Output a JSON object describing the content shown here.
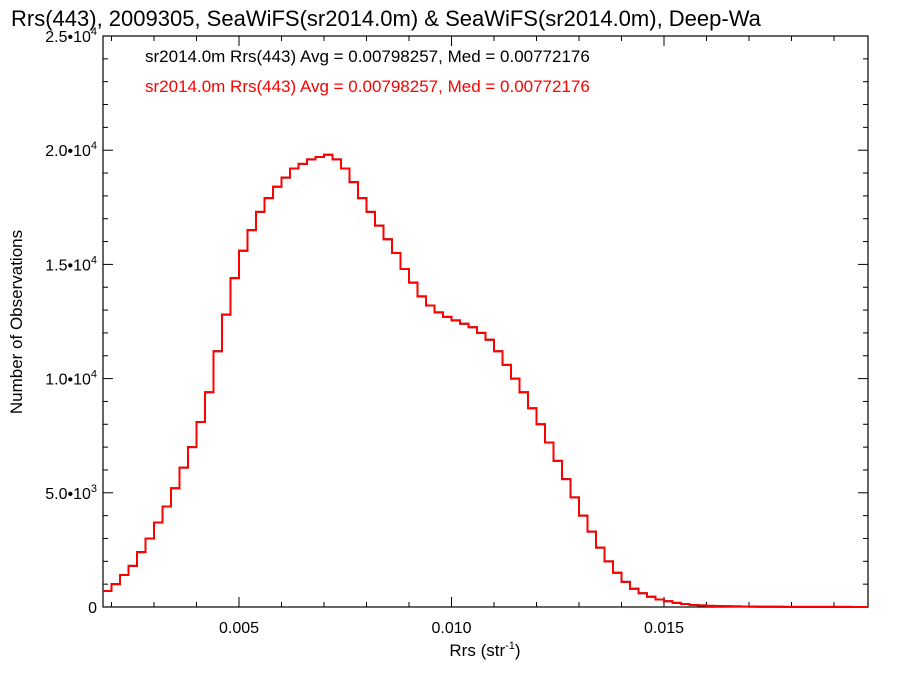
{
  "chart_data": {
    "type": "line",
    "title": "Rrs(443), 2009305, SeaWiFS(sr2014.0m) & SeaWiFS(sr2014.0m), Deep-Wa",
    "xlabel": "Rrs (str",
    "xlabel_sup": "-1",
    "xlabel_end": ")",
    "ylabel": "Number of Observations",
    "xlim": [
      0.0018,
      0.0198
    ],
    "ylim": [
      0,
      25000
    ],
    "x_ticks": [
      {
        "value": 0.005,
        "label": "0.005"
      },
      {
        "value": 0.01,
        "label": "0.010"
      },
      {
        "value": 0.015,
        "label": "0.015"
      }
    ],
    "y_ticks": [
      {
        "value": 0,
        "label": "0",
        "sup": ""
      },
      {
        "value": 5000,
        "label": "5.0•10",
        "sup": "3"
      },
      {
        "value": 10000,
        "label": "1.0•10",
        "sup": "4"
      },
      {
        "value": 15000,
        "label": "1.5•10",
        "sup": "4"
      },
      {
        "value": 20000,
        "label": "2.0•10",
        "sup": "4"
      },
      {
        "value": 25000,
        "label": "2.5•10",
        "sup": "4"
      }
    ],
    "grid": false,
    "legend_position": "top-left",
    "legend_text": [
      "sr2014.0m Rrs(443) Avg = 0.00798257, Med = 0.00772176",
      "sr2014.0m Rrs(443) Avg = 0.00798257, Med = 0.00772176"
    ],
    "series": [
      {
        "name": "sr2014.0m Rrs(443) Avg = 0.00798257, Med = 0.00772176",
        "color": "#000000",
        "x": [
          0.0018,
          0.002,
          0.0022,
          0.0024,
          0.0026,
          0.0028,
          0.003,
          0.0032,
          0.0034,
          0.0036,
          0.0038,
          0.004,
          0.0042,
          0.0044,
          0.0046,
          0.0048,
          0.005,
          0.0052,
          0.0054,
          0.0056,
          0.0058,
          0.006,
          0.0062,
          0.0064,
          0.0066,
          0.0068,
          0.007,
          0.0072,
          0.0074,
          0.0076,
          0.0078,
          0.008,
          0.0082,
          0.0084,
          0.0086,
          0.0088,
          0.009,
          0.0092,
          0.0094,
          0.0096,
          0.0098,
          0.01,
          0.0102,
          0.0104,
          0.0106,
          0.0108,
          0.011,
          0.0112,
          0.0114,
          0.0116,
          0.0118,
          0.012,
          0.0122,
          0.0124,
          0.0126,
          0.0128,
          0.013,
          0.0132,
          0.0134,
          0.0136,
          0.0138,
          0.014,
          0.0142,
          0.0144,
          0.0146,
          0.0148,
          0.015,
          0.0152,
          0.0154,
          0.0156,
          0.0158,
          0.016,
          0.0162,
          0.0164,
          0.0166,
          0.0168,
          0.017,
          0.0172,
          0.0174,
          0.0176,
          0.0178,
          0.018,
          0.0182,
          0.0184,
          0.0186,
          0.0188,
          0.019,
          0.0192,
          0.0194,
          0.0196
        ],
        "y": [
          700,
          1000,
          1400,
          1800,
          2400,
          3000,
          3700,
          4400,
          5200,
          6100,
          7000,
          8100,
          9400,
          11200,
          12800,
          14400,
          15600,
          16500,
          17300,
          17900,
          18400,
          18800,
          19200,
          19400,
          19600,
          19700,
          19800,
          19600,
          19200,
          18600,
          17900,
          17300,
          16700,
          16100,
          15500,
          14800,
          14200,
          13600,
          13200,
          12900,
          12700,
          12550,
          12400,
          12250,
          12000,
          11700,
          11200,
          10600,
          10000,
          9400,
          8700,
          8000,
          7200,
          6400,
          5600,
          4800,
          4000,
          3300,
          2600,
          2000,
          1500,
          1100,
          800,
          600,
          450,
          330,
          250,
          180,
          130,
          90,
          70,
          50,
          40,
          30,
          25,
          20,
          16,
          13,
          11,
          9,
          8,
          7,
          6,
          5,
          4,
          4,
          3,
          3,
          2,
          2
        ]
      },
      {
        "name": "sr2014.0m Rrs(443) Avg = 0.00798257, Med = 0.00772176",
        "color": "#ff0000",
        "x": [
          0.0018,
          0.002,
          0.0022,
          0.0024,
          0.0026,
          0.0028,
          0.003,
          0.0032,
          0.0034,
          0.0036,
          0.0038,
          0.004,
          0.0042,
          0.0044,
          0.0046,
          0.0048,
          0.005,
          0.0052,
          0.0054,
          0.0056,
          0.0058,
          0.006,
          0.0062,
          0.0064,
          0.0066,
          0.0068,
          0.007,
          0.0072,
          0.0074,
          0.0076,
          0.0078,
          0.008,
          0.0082,
          0.0084,
          0.0086,
          0.0088,
          0.009,
          0.0092,
          0.0094,
          0.0096,
          0.0098,
          0.01,
          0.0102,
          0.0104,
          0.0106,
          0.0108,
          0.011,
          0.0112,
          0.0114,
          0.0116,
          0.0118,
          0.012,
          0.0122,
          0.0124,
          0.0126,
          0.0128,
          0.013,
          0.0132,
          0.0134,
          0.0136,
          0.0138,
          0.014,
          0.0142,
          0.0144,
          0.0146,
          0.0148,
          0.015,
          0.0152,
          0.0154,
          0.0156,
          0.0158,
          0.016,
          0.0162,
          0.0164,
          0.0166,
          0.0168,
          0.017,
          0.0172,
          0.0174,
          0.0176,
          0.0178,
          0.018,
          0.0182,
          0.0184,
          0.0186,
          0.0188,
          0.019,
          0.0192,
          0.0194,
          0.0196
        ],
        "y": [
          700,
          1000,
          1400,
          1800,
          2400,
          3000,
          3700,
          4400,
          5200,
          6100,
          7000,
          8100,
          9400,
          11200,
          12800,
          14400,
          15600,
          16500,
          17300,
          17900,
          18400,
          18800,
          19200,
          19400,
          19600,
          19700,
          19800,
          19600,
          19200,
          18600,
          17900,
          17300,
          16700,
          16100,
          15500,
          14800,
          14200,
          13600,
          13200,
          12900,
          12700,
          12550,
          12400,
          12250,
          12000,
          11700,
          11200,
          10600,
          10000,
          9400,
          8700,
          8000,
          7200,
          6400,
          5600,
          4800,
          4000,
          3300,
          2600,
          2000,
          1500,
          1100,
          800,
          600,
          450,
          330,
          250,
          180,
          130,
          90,
          70,
          50,
          40,
          30,
          25,
          20,
          16,
          13,
          11,
          9,
          8,
          7,
          6,
          5,
          4,
          4,
          3,
          3,
          2,
          2
        ]
      }
    ]
  }
}
